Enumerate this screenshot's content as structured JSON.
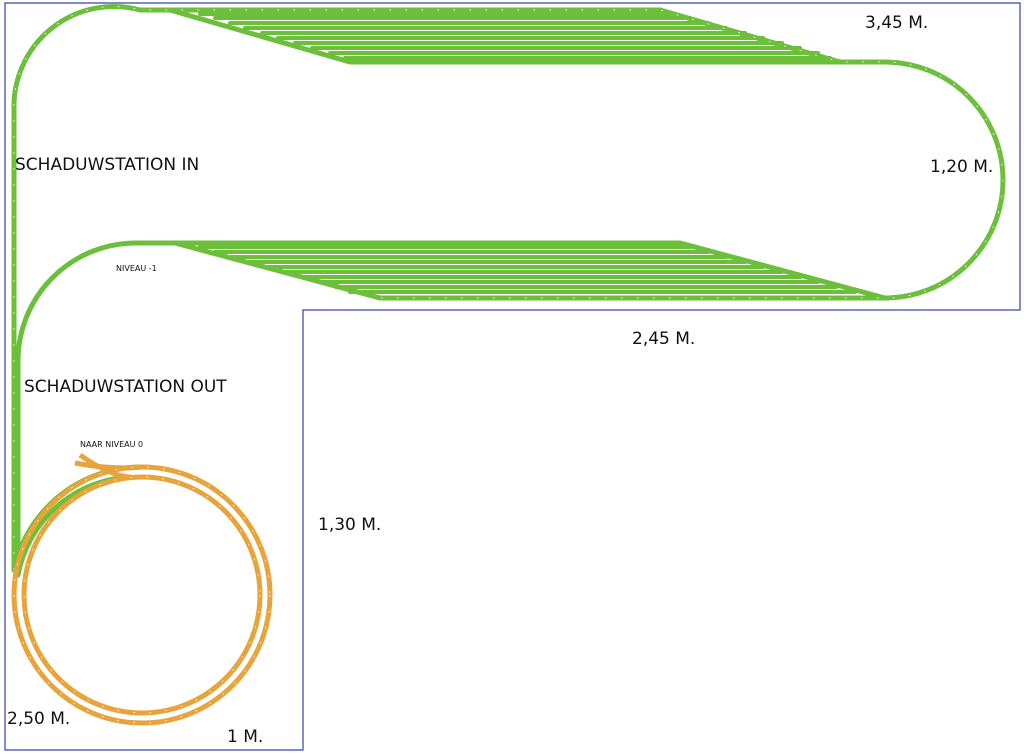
{
  "dimensions": [
    "3,45 M.",
    "1,20 M.",
    "2,45 M.",
    "1,30 M.",
    "2,50 M.",
    "1 M."
  ],
  "stations": [
    "SCHADUWSTATION IN",
    "SCHADUWSTATION OUT"
  ],
  "levels": [
    "NIVEAU -1",
    "NAAR NIVEAU 0"
  ]
}
